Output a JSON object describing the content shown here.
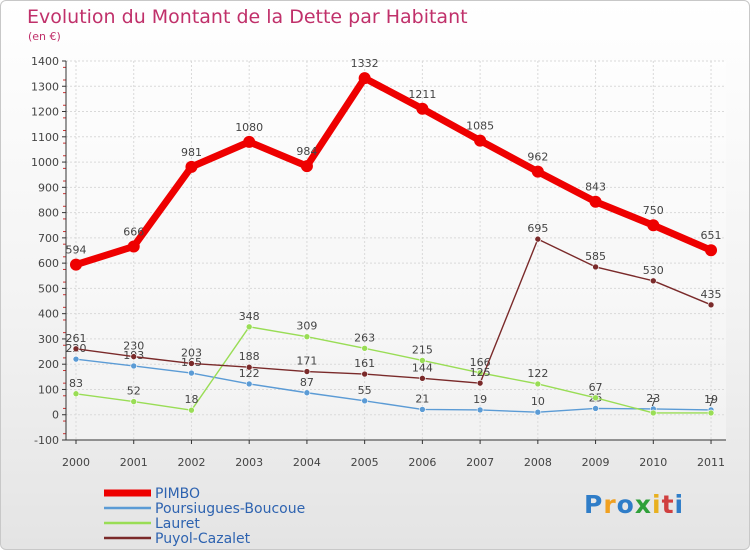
{
  "title": "Evolution du Montant de la Dette par Habitant",
  "subtitle": "(en €)",
  "logo": {
    "letters": [
      "P",
      "r",
      "o",
      "x",
      "i",
      "t",
      "i"
    ],
    "colors": [
      "#2f7dc8",
      "#f0a020",
      "#2f7dc8",
      "#2fa03a",
      "#e8b020",
      "#d04040",
      "#2f7dc8"
    ]
  },
  "chart_data": {
    "type": "line",
    "x": [
      "2000",
      "2001",
      "2002",
      "2003",
      "2004",
      "2005",
      "2006",
      "2007",
      "2008",
      "2009",
      "2010",
      "2011"
    ],
    "ylim": [
      -100,
      1400
    ],
    "yticks": [
      "-100",
      "0",
      "100",
      "200",
      "300",
      "400",
      "500",
      "600",
      "700",
      "800",
      "900",
      "1000",
      "1100",
      "1200",
      "1300",
      "1400"
    ],
    "grid": true,
    "legend_position": "bottom-left",
    "series": [
      {
        "name": "PIMBO",
        "color": "#ee0000",
        "width": 7,
        "values": [
          594,
          666,
          981,
          1080,
          984,
          1332,
          1211,
          1085,
          962,
          843,
          750,
          651
        ],
        "labels": [
          "594",
          "666",
          "981",
          "1080",
          "984",
          "1332",
          "1211",
          "1085",
          "962",
          "843",
          "750",
          "651"
        ]
      },
      {
        "name": "Poursiugues-Boucoue",
        "color": "#5b9bd5",
        "width": 1.4,
        "values": [
          220,
          193,
          165,
          122,
          87,
          55,
          21,
          19,
          10,
          25,
          23,
          19
        ],
        "labels": [
          "220",
          "193",
          "165",
          "122",
          "87",
          "55",
          "21",
          "19",
          "10",
          "25",
          "23",
          "19"
        ]
      },
      {
        "name": "Lauret",
        "color": "#99dd55",
        "width": 1.4,
        "values": [
          83,
          52,
          18,
          348,
          309,
          263,
          215,
          166,
          122,
          67,
          7,
          7
        ],
        "labels": [
          "83",
          "52",
          "18",
          "348",
          "309",
          "263",
          "215",
          "166",
          "122",
          "67",
          "7",
          "7"
        ]
      },
      {
        "name": "Puyol-Cazalet",
        "color": "#7a2a2a",
        "width": 1.4,
        "values": [
          261,
          230,
          203,
          188,
          171,
          161,
          144,
          125,
          695,
          585,
          530,
          435
        ],
        "labels": [
          "261",
          "230",
          "203",
          "188",
          "171",
          "161",
          "144",
          "125",
          "695",
          "585",
          "530",
          "435"
        ]
      }
    ]
  }
}
